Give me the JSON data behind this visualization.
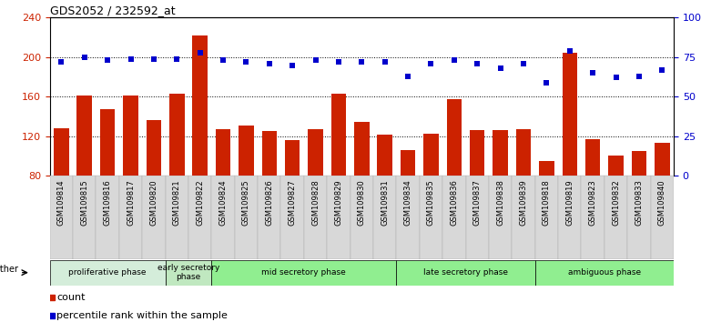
{
  "title": "GDS2052 / 232592_at",
  "samples": [
    "GSM109814",
    "GSM109815",
    "GSM109816",
    "GSM109817",
    "GSM109820",
    "GSM109821",
    "GSM109822",
    "GSM109824",
    "GSM109825",
    "GSM109826",
    "GSM109827",
    "GSM109828",
    "GSM109829",
    "GSM109830",
    "GSM109831",
    "GSM109834",
    "GSM109835",
    "GSM109836",
    "GSM109837",
    "GSM109838",
    "GSM109839",
    "GSM109818",
    "GSM109819",
    "GSM109823",
    "GSM109832",
    "GSM109833",
    "GSM109840"
  ],
  "counts": [
    128,
    161,
    147,
    161,
    136,
    163,
    222,
    127,
    131,
    125,
    116,
    127,
    163,
    134,
    121,
    106,
    122,
    157,
    126,
    126,
    127,
    95,
    204,
    117,
    100,
    105,
    113
  ],
  "percentiles": [
    72,
    75,
    73,
    74,
    74,
    74,
    78,
    73,
    72,
    71,
    70,
    73,
    72,
    72,
    72,
    63,
    71,
    73,
    71,
    68,
    71,
    59,
    79,
    65,
    62,
    63,
    67
  ],
  "ylim_left": [
    80,
    240
  ],
  "ylim_right": [
    0,
    100
  ],
  "yticks_left": [
    80,
    120,
    160,
    200,
    240
  ],
  "yticks_right": [
    0,
    25,
    50,
    75,
    100
  ],
  "ytick_labels_right": [
    "0",
    "25",
    "50",
    "75",
    "100%"
  ],
  "bar_color": "#CC2200",
  "dot_color": "#0000CC",
  "bg_color": "#ffffff",
  "tick_bg_color": "#d8d8d8",
  "grid_vals": [
    120,
    160,
    200
  ],
  "phases": [
    {
      "label": "proliferative phase",
      "start": 0,
      "end": 5,
      "color": "#d4edda"
    },
    {
      "label": "early secretory\nphase",
      "start": 5,
      "end": 7,
      "color": "#c0e8c0"
    },
    {
      "label": "mid secretory phase",
      "start": 7,
      "end": 15,
      "color": "#90ee90"
    },
    {
      "label": "late secretory phase",
      "start": 15,
      "end": 21,
      "color": "#90ee90"
    },
    {
      "label": "ambiguous phase",
      "start": 21,
      "end": 27,
      "color": "#90ee90"
    }
  ],
  "legend": [
    {
      "label": "count",
      "color": "#CC2200"
    },
    {
      "label": "percentile rank within the sample",
      "color": "#0000CC"
    }
  ]
}
